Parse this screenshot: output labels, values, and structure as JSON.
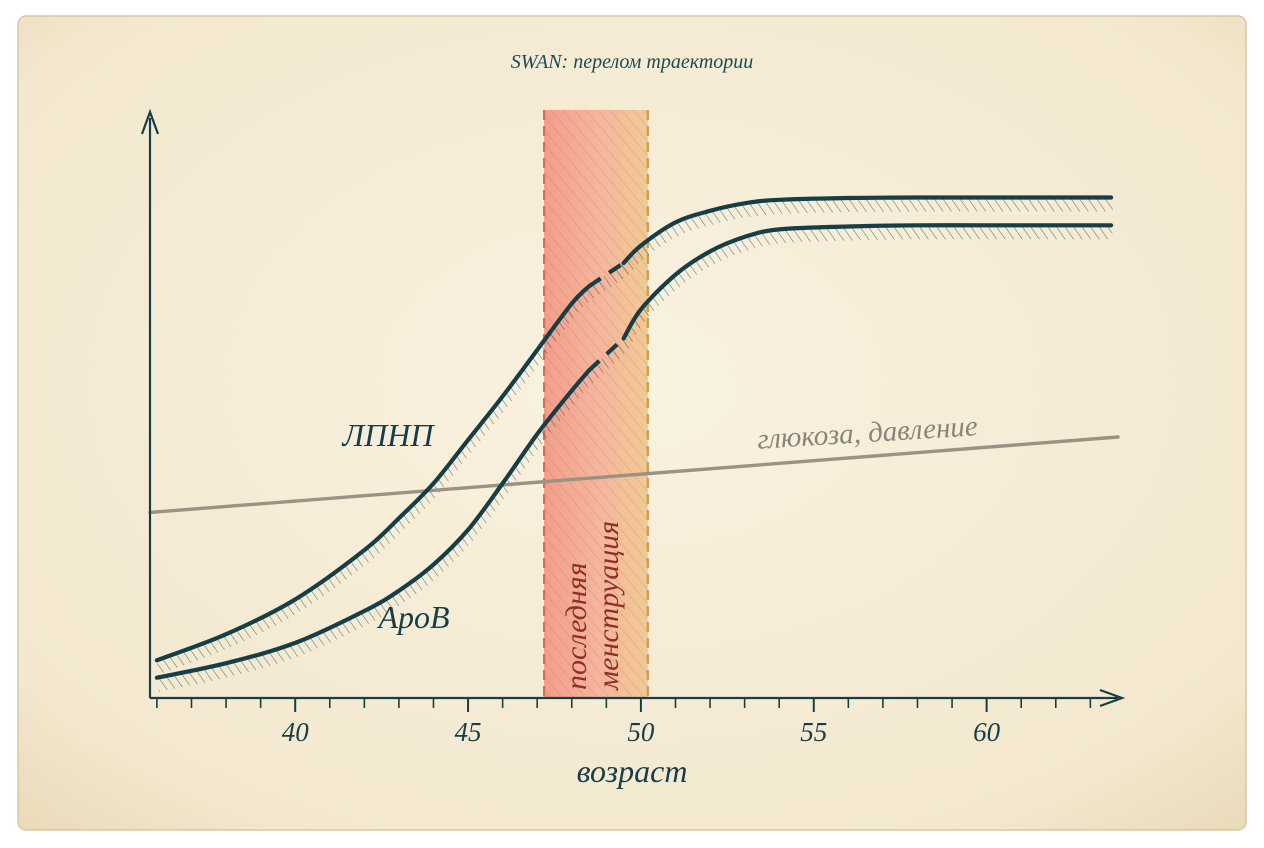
{
  "chart_data": {
    "type": "line",
    "title": "SWAN: перелом траектории",
    "xlabel": "возраст",
    "ylabel": "",
    "xlim": [
      35.8,
      63.8
    ],
    "ylim": [
      0,
      100
    ],
    "x_ticks": [
      40,
      45,
      50,
      55,
      60
    ],
    "grid": false,
    "y_axis_ticks": false,
    "colors": {
      "curve": "#163e47",
      "trend": "#9a9284",
      "band_red": "#f09a86",
      "band_orange": "#f2c48c",
      "band_dash_red": "#dc6a5c",
      "band_dash_orange": "#d49a4a",
      "paper": "#f7efdc",
      "axis": "#163e47"
    },
    "band": {
      "x_start": 47.2,
      "x_end": 50.2,
      "label_lines": [
        "последняя",
        "менструация"
      ]
    },
    "series": [
      {
        "name": "ЛПНП",
        "x": [
          36,
          38,
          40,
          42,
          43,
          44,
          45,
          46,
          47,
          48,
          48.5,
          49.5,
          50,
          51,
          52,
          53,
          54,
          56,
          58,
          60,
          62,
          63.6
        ],
        "y": [
          6.5,
          11,
          17,
          25.5,
          31,
          37,
          44.5,
          52,
          60,
          68,
          71,
          75,
          78,
          82,
          84,
          85.3,
          85.9,
          86.2,
          86.3,
          86.3,
          86.3,
          86.3
        ],
        "dashed_segment": [
          48.5,
          49.5
        ]
      },
      {
        "name": "ApoB",
        "x": [
          36,
          38,
          40,
          42,
          43,
          44,
          45,
          46,
          47,
          48,
          48.5,
          49.5,
          50,
          51,
          52,
          53,
          54,
          56,
          58,
          60,
          62,
          63.6
        ],
        "y": [
          3.5,
          6,
          9.5,
          15,
          18.5,
          23,
          29,
          37,
          45.5,
          53,
          56.5,
          62,
          67,
          73,
          77,
          79.5,
          80.8,
          81.3,
          81.5,
          81.5,
          81.5,
          81.5
        ],
        "dashed_segment": [
          48.5,
          49.5
        ]
      },
      {
        "name": "глюкоза, давление",
        "x": [
          35.8,
          63.8
        ],
        "y": [
          32,
          45
        ]
      }
    ]
  }
}
